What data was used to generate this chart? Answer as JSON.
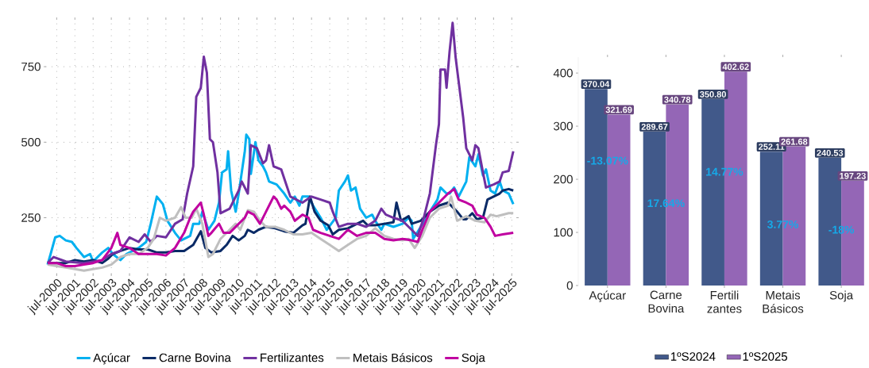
{
  "chart_data": [
    {
      "type": "line",
      "legend": "bottom",
      "grid": true,
      "xlim": [
        "1999-12",
        "2025-10"
      ],
      "ylim": [
        65,
        905
      ],
      "xticks": [
        {
          "value": "2000-07",
          "label": "jul-2000"
        },
        {
          "value": "2001-07",
          "label": "jul-2001"
        },
        {
          "value": "2002-07",
          "label": "jul-2002"
        },
        {
          "value": "2003-07",
          "label": "jul-2003"
        },
        {
          "value": "2004-07",
          "label": "jul-2004"
        },
        {
          "value": "2005-07",
          "label": "jul-2005"
        },
        {
          "value": "2006-07",
          "label": "jul-2006"
        },
        {
          "value": "2007-07",
          "label": "jul-2007"
        },
        {
          "value": "2008-07",
          "label": "jul-2008"
        },
        {
          "value": "2009-07",
          "label": "jul-2009"
        },
        {
          "value": "2010-07",
          "label": "jul-2010"
        },
        {
          "value": "2011-07",
          "label": "jul-2011"
        },
        {
          "value": "2012-07",
          "label": "jul-2012"
        },
        {
          "value": "2013-07",
          "label": "jul-2013"
        },
        {
          "value": "2014-07",
          "label": "jul-2014"
        },
        {
          "value": "2015-07",
          "label": "jul-2015"
        },
        {
          "value": "2016-07",
          "label": "jul-2016"
        },
        {
          "value": "2017-07",
          "label": "jul-2017"
        },
        {
          "value": "2018-07",
          "label": "jul-2018"
        },
        {
          "value": "2019-07",
          "label": "jul-2019"
        },
        {
          "value": "2020-07",
          "label": "jul-2020"
        },
        {
          "value": "2021-07",
          "label": "jul-2021"
        },
        {
          "value": "2022-07",
          "label": "jul-2022"
        },
        {
          "value": "2023-07",
          "label": "jul-2023"
        },
        {
          "value": "2024-07",
          "label": "jul-2024"
        },
        {
          "value": "2025-07",
          "label": "jul-2025"
        }
      ],
      "yticks": [
        250,
        500,
        750
      ],
      "series": [
        {
          "name": "Açúcar",
          "color": "#00b0f0",
          "x": [
            "2000-01",
            "2000-03",
            "2000-06",
            "2000-09",
            "2001-01",
            "2001-05",
            "2001-08",
            "2002-01",
            "2002-05",
            "2002-07",
            "2003-01",
            "2003-05",
            "2003-08",
            "2004-01",
            "2004-05",
            "2004-09",
            "2005-01",
            "2005-06",
            "2005-09",
            "2006-01",
            "2006-05",
            "2006-08",
            "2007-01",
            "2007-05",
            "2007-11",
            "2008-01",
            "2008-05",
            "2008-07",
            "2008-11",
            "2009-03",
            "2009-06",
            "2009-08",
            "2009-11",
            "2009-12",
            "2010-02",
            "2010-05",
            "2010-07",
            "2010-11",
            "2010-12",
            "2011-02",
            "2011-03",
            "2011-06",
            "2011-08",
            "2011-11",
            "2012-01",
            "2012-03",
            "2012-08",
            "2013-01",
            "2013-05",
            "2013-08",
            "2013-11",
            "2014-01",
            "2014-05",
            "2014-08",
            "2015-01",
            "2015-05",
            "2015-08",
            "2015-11",
            "2016-01",
            "2016-05",
            "2016-07",
            "2016-09",
            "2016-12",
            "2017-03",
            "2017-07",
            "2017-11",
            "2018-01",
            "2018-05",
            "2018-07",
            "2019-01",
            "2019-07",
            "2019-11",
            "2020-01",
            "2020-02",
            "2020-07",
            "2020-11",
            "2021-01",
            "2021-06",
            "2021-08",
            "2021-12",
            "2022-02",
            "2022-05",
            "2022-08",
            "2023-01",
            "2023-03",
            "2023-07",
            "2023-09",
            "2023-12",
            "2024-02",
            "2024-05",
            "2024-08",
            "2024-11",
            "2025-01",
            "2025-05",
            "2025-08"
          ],
          "values": [
            95,
            130,
            185,
            190,
            175,
            170,
            150,
            120,
            130,
            105,
            135,
            150,
            130,
            110,
            130,
            140,
            150,
            170,
            230,
            320,
            295,
            240,
            200,
            175,
            190,
            230,
            230,
            270,
            210,
            240,
            300,
            400,
            410,
            470,
            340,
            270,
            330,
            470,
            525,
            510,
            395,
            500,
            440,
            420,
            400,
            370,
            360,
            330,
            300,
            320,
            290,
            320,
            320,
            290,
            250,
            210,
            230,
            250,
            340,
            370,
            390,
            340,
            350,
            280,
            250,
            260,
            240,
            210,
            230,
            220,
            230,
            250,
            240,
            180,
            220,
            250,
            270,
            310,
            350,
            330,
            330,
            350,
            320,
            370,
            450,
            420,
            460,
            390,
            410,
            340,
            330,
            370,
            340,
            330,
            295
          ]
        },
        {
          "name": "Carne Bovina",
          "color": "#0a2a66",
          "x": [
            "2000-01",
            "2000-07",
            "2001-01",
            "2001-07",
            "2002-01",
            "2002-07",
            "2003-01",
            "2003-05",
            "2003-08",
            "2004-01",
            "2004-07",
            "2005-01",
            "2005-07",
            "2006-01",
            "2006-07",
            "2007-01",
            "2007-07",
            "2008-01",
            "2008-06",
            "2008-09",
            "2009-01",
            "2009-07",
            "2009-11",
            "2010-03",
            "2010-07",
            "2010-11",
            "2011-01",
            "2011-05",
            "2011-08",
            "2012-01",
            "2012-07",
            "2013-01",
            "2013-07",
            "2014-01",
            "2014-03",
            "2014-06",
            "2014-09",
            "2015-01",
            "2015-06",
            "2015-09",
            "2016-01",
            "2016-07",
            "2017-01",
            "2017-05",
            "2017-08",
            "2018-01",
            "2018-07",
            "2019-01",
            "2019-03",
            "2019-06",
            "2019-11",
            "2020-01",
            "2020-07",
            "2021-01",
            "2021-07",
            "2022-01",
            "2022-07",
            "2022-11",
            "2023-01",
            "2023-05",
            "2023-08",
            "2023-12",
            "2024-03",
            "2024-07",
            "2024-11",
            "2025-01",
            "2025-05",
            "2025-08"
          ],
          "values": [
            100,
            100,
            100,
            110,
            105,
            110,
            100,
            115,
            130,
            140,
            150,
            145,
            145,
            135,
            135,
            140,
            140,
            160,
            205,
            150,
            135,
            140,
            160,
            190,
            175,
            190,
            210,
            200,
            210,
            220,
            215,
            205,
            200,
            225,
            230,
            320,
            270,
            240,
            225,
            195,
            210,
            215,
            230,
            240,
            225,
            225,
            230,
            235,
            300,
            240,
            255,
            230,
            240,
            270,
            290,
            300,
            270,
            245,
            245,
            265,
            245,
            250,
            310,
            320,
            330,
            340,
            345,
            340
          ]
        },
        {
          "name": "Fertilizantes",
          "color": "#7030a0",
          "x": [
            "2000-01",
            "2000-05",
            "2001-01",
            "2002-01",
            "2003-01",
            "2003-07",
            "2004-01",
            "2004-07",
            "2005-01",
            "2005-05",
            "2005-09",
            "2006-01",
            "2006-07",
            "2007-01",
            "2007-06",
            "2007-09",
            "2008-01",
            "2008-03",
            "2008-06",
            "2008-08",
            "2008-10",
            "2008-12",
            "2009-02",
            "2009-05",
            "2009-07",
            "2010-01",
            "2010-07",
            "2010-09",
            "2011-01",
            "2011-03",
            "2011-07",
            "2011-11",
            "2012-01",
            "2012-03",
            "2012-06",
            "2012-11",
            "2013-01",
            "2013-05",
            "2014-01",
            "2014-07",
            "2015-01",
            "2015-07",
            "2015-09",
            "2016-01",
            "2016-07",
            "2017-01",
            "2017-07",
            "2018-01",
            "2018-05",
            "2018-08",
            "2019-01",
            "2019-07",
            "2020-01",
            "2020-05",
            "2020-09",
            "2021-01",
            "2021-05",
            "2021-07",
            "2021-08",
            "2021-11",
            "2021-12",
            "2022-02",
            "2022-04",
            "2022-06",
            "2022-08",
            "2022-11",
            "2023-01",
            "2023-05",
            "2023-07",
            "2023-09",
            "2023-12",
            "2024-02",
            "2024-07",
            "2024-11",
            "2025-01",
            "2025-05",
            "2025-08"
          ],
          "values": [
            100,
            120,
            105,
            100,
            110,
            130,
            140,
            185,
            170,
            195,
            170,
            190,
            185,
            230,
            245,
            330,
            420,
            650,
            680,
            783,
            730,
            510,
            500,
            400,
            265,
            280,
            340,
            370,
            330,
            490,
            480,
            430,
            440,
            490,
            420,
            410,
            380,
            320,
            300,
            320,
            310,
            300,
            270,
            220,
            230,
            230,
            220,
            240,
            280,
            260,
            250,
            240,
            210,
            190,
            250,
            330,
            490,
            560,
            740,
            740,
            680,
            800,
            895,
            780,
            700,
            580,
            480,
            440,
            490,
            480,
            400,
            350,
            360,
            370,
            400,
            405,
            470
          ]
        },
        {
          "name": "Metais Básicos",
          "color": "#bfbfbf",
          "x": [
            "2000-01",
            "2000-07",
            "2001-01",
            "2001-07",
            "2002-01",
            "2002-07",
            "2003-01",
            "2003-07",
            "2004-01",
            "2004-07",
            "2005-01",
            "2005-07",
            "2005-11",
            "2006-03",
            "2006-07",
            "2007-01",
            "2007-05",
            "2007-08",
            "2007-12",
            "2008-03",
            "2008-07",
            "2008-11",
            "2009-02",
            "2009-07",
            "2010-01",
            "2010-05",
            "2010-08",
            "2011-01",
            "2011-05",
            "2011-09",
            "2012-01",
            "2012-07",
            "2013-01",
            "2013-07",
            "2014-01",
            "2014-07",
            "2015-01",
            "2015-07",
            "2016-01",
            "2016-07",
            "2017-01",
            "2017-07",
            "2018-01",
            "2018-07",
            "2019-01",
            "2019-07",
            "2019-11",
            "2020-03",
            "2020-08",
            "2021-01",
            "2021-07",
            "2022-01",
            "2022-03",
            "2022-07",
            "2023-01",
            "2023-07",
            "2024-01",
            "2024-05",
            "2024-09",
            "2025-01",
            "2025-05",
            "2025-08"
          ],
          "values": [
            95,
            90,
            85,
            80,
            75,
            80,
            85,
            95,
            120,
            130,
            130,
            150,
            180,
            250,
            240,
            250,
            285,
            250,
            250,
            280,
            230,
            120,
            130,
            180,
            210,
            230,
            210,
            275,
            270,
            240,
            220,
            220,
            210,
            195,
            195,
            200,
            180,
            160,
            140,
            160,
            180,
            190,
            215,
            190,
            180,
            175,
            180,
            150,
            190,
            250,
            280,
            290,
            320,
            240,
            255,
            240,
            235,
            260,
            255,
            260,
            265,
            265
          ]
        },
        {
          "name": "Soja",
          "color": "#c000a0",
          "x": [
            "2000-01",
            "2000-07",
            "2001-01",
            "2001-07",
            "2002-01",
            "2002-07",
            "2003-01",
            "2003-07",
            "2003-11",
            "2004-01",
            "2004-07",
            "2005-01",
            "2005-07",
            "2006-01",
            "2006-07",
            "2007-01",
            "2007-07",
            "2007-11",
            "2008-01",
            "2008-06",
            "2008-08",
            "2008-11",
            "2009-01",
            "2009-06",
            "2009-09",
            "2010-01",
            "2010-07",
            "2010-11",
            "2011-01",
            "2011-05",
            "2011-09",
            "2012-01",
            "2012-06",
            "2012-08",
            "2012-11",
            "2013-01",
            "2013-05",
            "2013-08",
            "2014-01",
            "2014-05",
            "2014-08",
            "2015-01",
            "2015-07",
            "2016-01",
            "2016-07",
            "2017-01",
            "2017-07",
            "2018-01",
            "2018-07",
            "2019-01",
            "2019-07",
            "2020-01",
            "2020-05",
            "2020-08",
            "2021-01",
            "2021-07",
            "2022-01",
            "2022-05",
            "2022-08",
            "2023-01",
            "2023-05",
            "2023-08",
            "2024-01",
            "2024-05",
            "2024-08",
            "2025-01",
            "2025-08"
          ],
          "values": [
            100,
            100,
            90,
            90,
            95,
            100,
            110,
            150,
            200,
            160,
            150,
            130,
            130,
            130,
            125,
            150,
            200,
            250,
            270,
            300,
            260,
            190,
            200,
            230,
            200,
            200,
            230,
            250,
            270,
            260,
            230,
            270,
            320,
            310,
            280,
            290,
            270,
            240,
            260,
            250,
            210,
            200,
            190,
            180,
            210,
            190,
            200,
            200,
            180,
            175,
            180,
            175,
            170,
            210,
            270,
            300,
            330,
            345,
            310,
            300,
            290,
            260,
            250,
            220,
            190,
            195,
            200
          ]
        }
      ]
    },
    {
      "type": "bar",
      "legend": "bottom",
      "categories": [
        "Açúcar",
        "Carne Bovina",
        "Fertili zantes",
        "Metais Básicos",
        "Soja"
      ],
      "ylim": [
        0,
        430
      ],
      "yticks": [
        0,
        100,
        200,
        300,
        400
      ],
      "series": [
        {
          "name": "1ºS2024",
          "color": "#41598a",
          "values": [
            370.04,
            289.67,
            350.8,
            252.11,
            240.53
          ],
          "value_labels": [
            "370.04",
            "289.67",
            "350.80",
            "252.11",
            "240.53"
          ]
        },
        {
          "name": "1ºS2025",
          "color": "#9466b6",
          "values": [
            321.69,
            340.78,
            402.62,
            261.68,
            197.23
          ],
          "value_labels": [
            "321.69",
            "340.78",
            "402.62",
            "261.68",
            "197.23"
          ]
        }
      ],
      "annotations": [
        {
          "text": "-13.07%",
          "x": "Açúcar",
          "y": 235
        },
        {
          "text": "17.64%",
          "x": "Carne Bovina",
          "y": 155
        },
        {
          "text": "14.77%",
          "x": "Fertili zantes",
          "y": 214
        },
        {
          "text": "3.77%",
          "x": "Metais Básicos",
          "y": 115
        },
        {
          "text": "-18%",
          "x": "Soja",
          "y": 105
        }
      ]
    }
  ]
}
